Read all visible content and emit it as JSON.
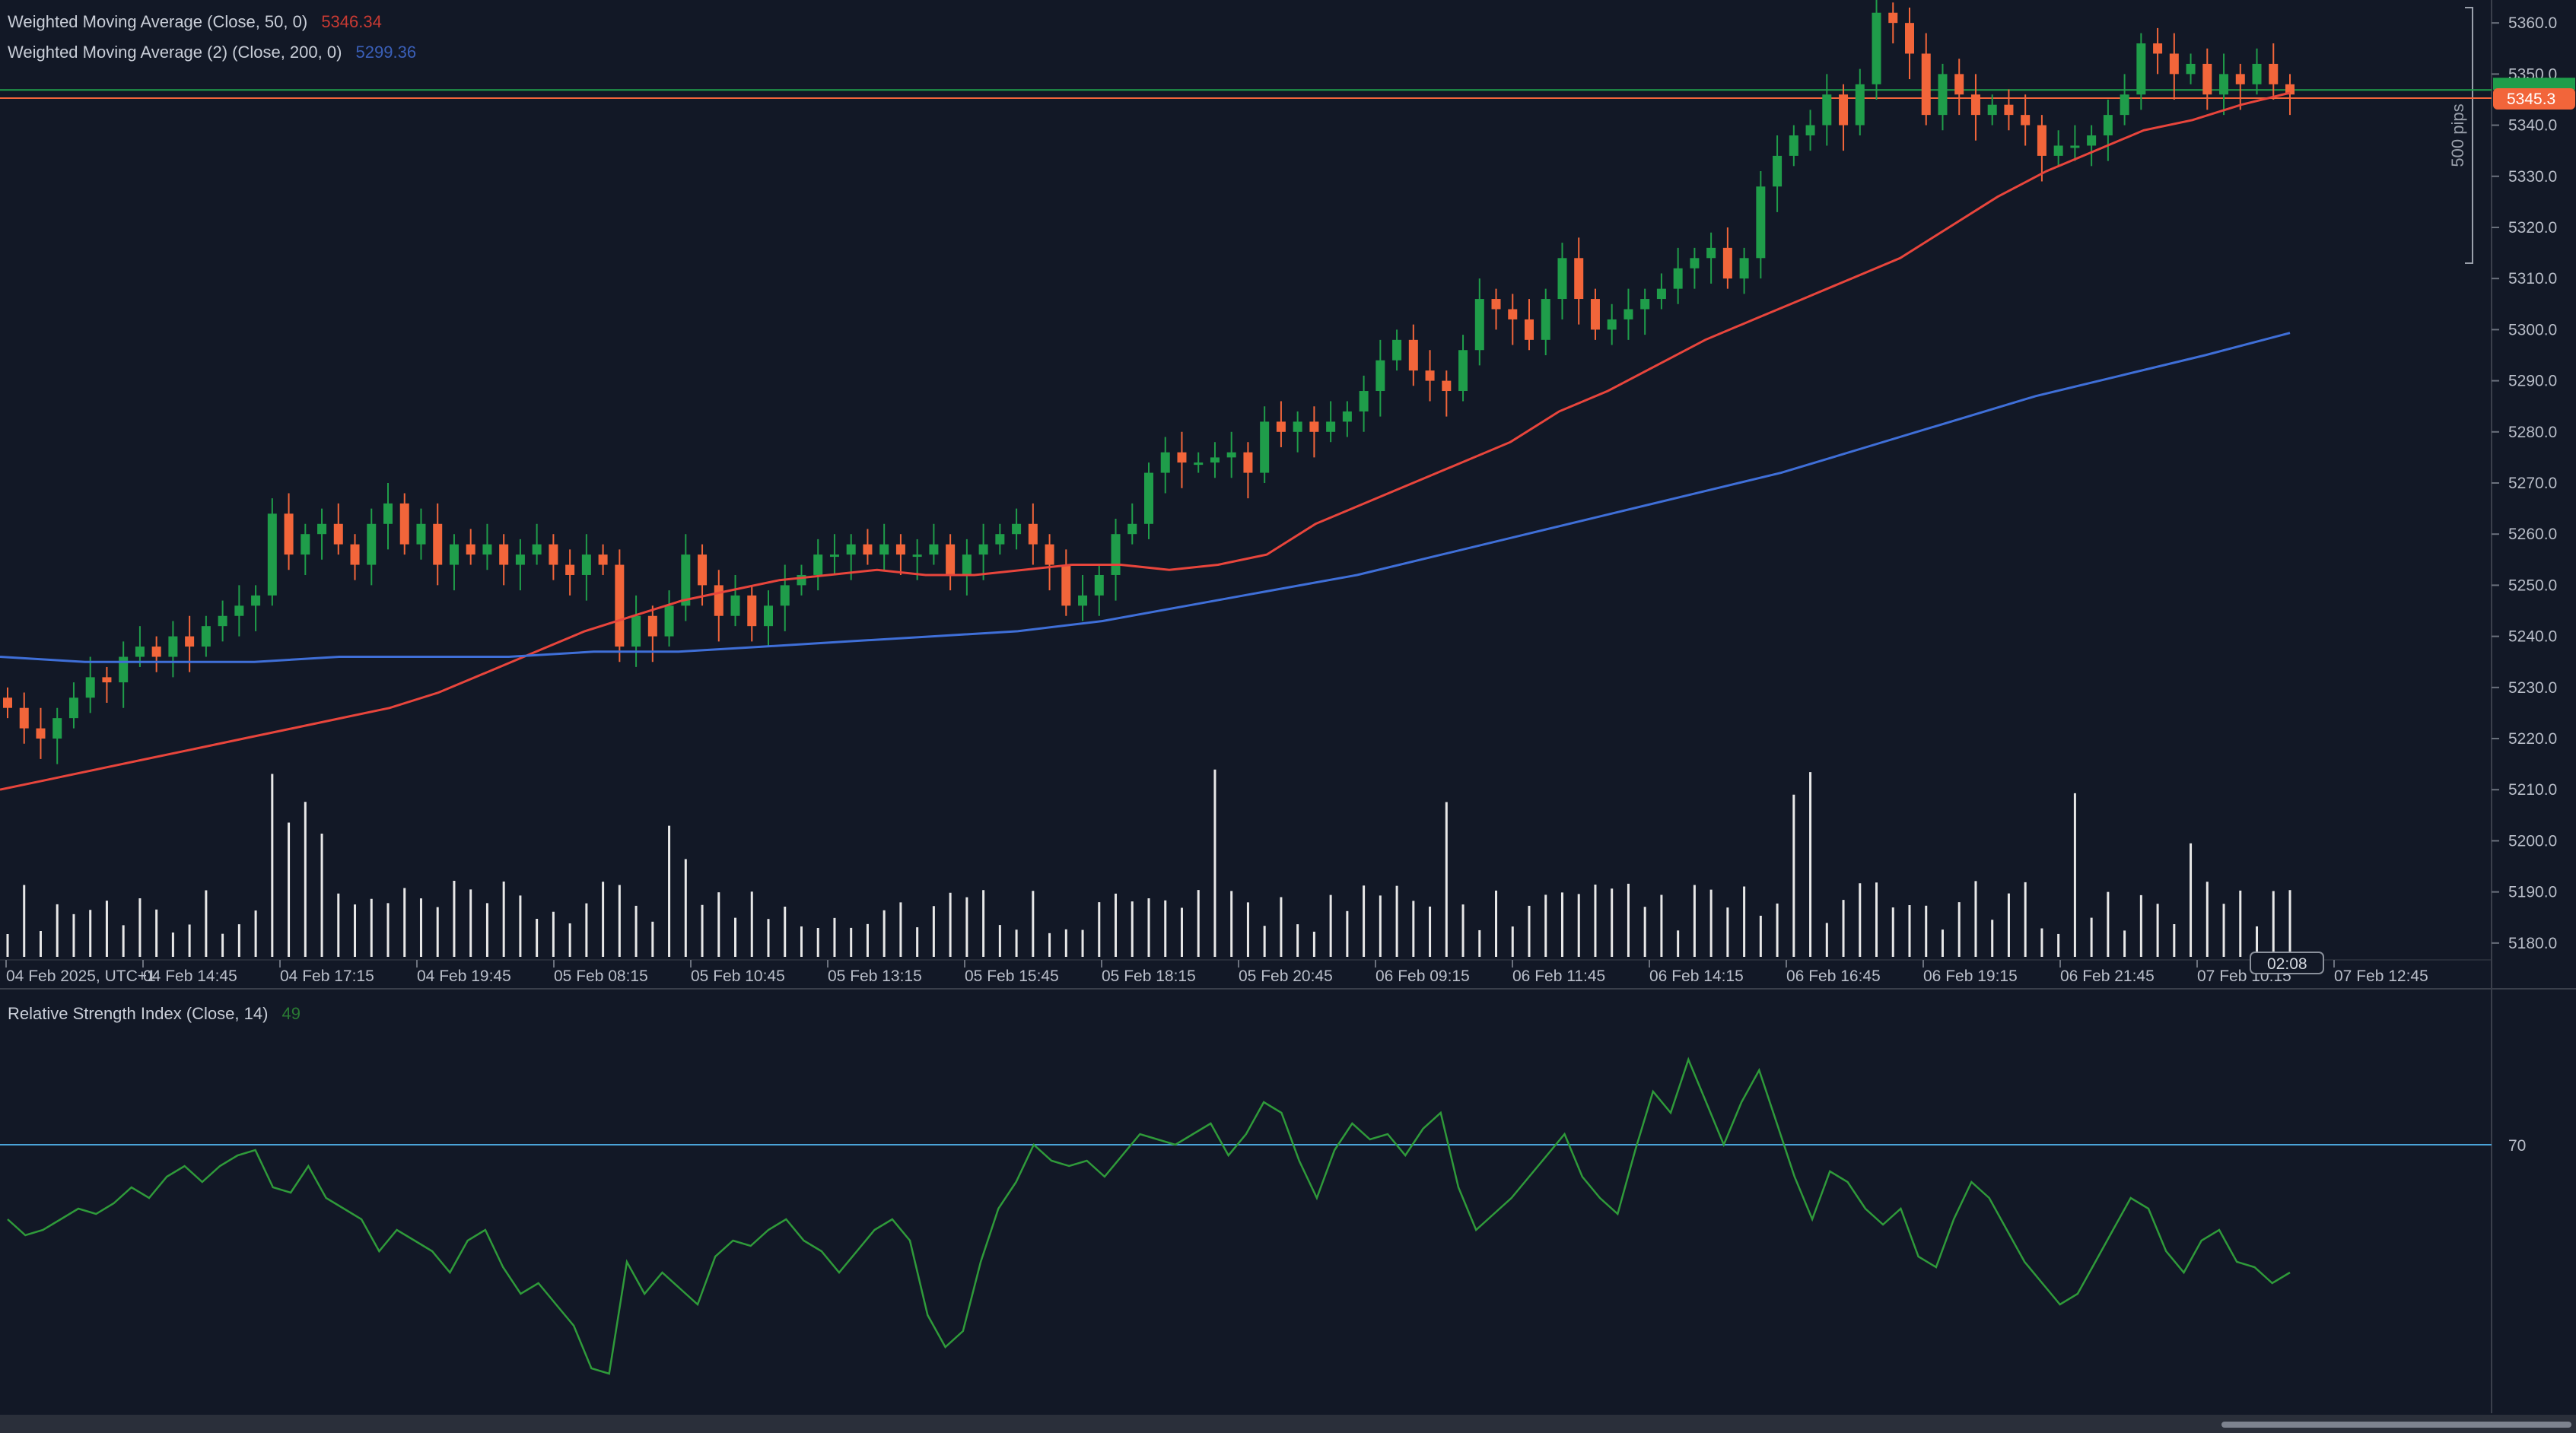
{
  "legends": {
    "wma50": {
      "label": "Weighted Moving Average (Close, 50, 0)",
      "value": "5346.34",
      "color": "#e8453c"
    },
    "wma200": {
      "label": "Weighted Moving Average (2) (Close, 200, 0)",
      "value": "5299.36",
      "color": "#3f6fd8"
    },
    "rsi": {
      "label": "Relative Strength Index (Close, 14)",
      "value": "49",
      "color": "#2f9a3a"
    }
  },
  "price_axis": {
    "ticks": [
      "5360.0",
      "5350.0",
      "5340.0",
      "5330.0",
      "5320.0",
      "5310.0",
      "5300.0",
      "5290.0",
      "5280.0",
      "5270.0",
      "5260.0",
      "5250.0",
      "5240.0",
      "5230.0",
      "5220.0",
      "5210.0",
      "5200.0",
      "5190.0",
      "5180.0"
    ],
    "current_price_label": "5345.3",
    "range_label": "500 pips"
  },
  "rsi_axis": {
    "level_label": "70"
  },
  "time_axis": {
    "ticks": [
      "04 Feb 2025, UTC+1",
      "04 Feb 14:45",
      "04 Feb 17:15",
      "04 Feb 19:45",
      "05 Feb 08:15",
      "05 Feb 10:45",
      "05 Feb 13:15",
      "05 Feb 15:45",
      "05 Feb 18:15",
      "05 Feb 20:45",
      "06 Feb 09:15",
      "06 Feb 11:45",
      "06 Feb 14:15",
      "06 Feb 16:45",
      "06 Feb 19:15",
      "06 Feb 21:45",
      "07 Feb 10:15",
      "07 Feb 12:45"
    ],
    "countdown": "02:08"
  },
  "colors": {
    "background": "#121826",
    "up": "#1f9d4a",
    "down": "#f2653a",
    "volume": "#e8e8e8",
    "grid_line": "#3a3f4b",
    "rsi_level": "#4aa3d8",
    "price_line_green": "#1f9d4a",
    "price_line_orange": "#f2653a"
  },
  "chart_data": {
    "type": "candlestick",
    "symbol_legends": [
      "Weighted Moving Average (Close, 50, 0)",
      "Weighted Moving Average (2) (Close, 200, 0)",
      "Relative Strength Index (Close, 14)"
    ],
    "ylim": [
      5177,
      5363
    ],
    "closes": [
      5226,
      5222,
      5220,
      5224,
      5228,
      5232,
      5231,
      5236,
      5238,
      5236,
      5240,
      5238,
      5242,
      5244,
      5246,
      5248,
      5264,
      5256,
      5260,
      5262,
      5258,
      5254,
      5262,
      5266,
      5258,
      5262,
      5254,
      5258,
      5256,
      5258,
      5254,
      5256,
      5258,
      5254,
      5252,
      5256,
      5254,
      5238,
      5244,
      5240,
      5246,
      5256,
      5250,
      5244,
      5248,
      5242,
      5246,
      5250,
      5252,
      5256,
      5256,
      5258,
      5256,
      5258,
      5256,
      5256,
      5258,
      5252,
      5256,
      5258,
      5260,
      5262,
      5258,
      5254,
      5246,
      5248,
      5252,
      5260,
      5262,
      5272,
      5276,
      5274,
      5274,
      5275,
      5276,
      5272,
      5282,
      5280,
      5282,
      5280,
      5282,
      5284,
      5288,
      5294,
      5298,
      5292,
      5290,
      5288,
      5296,
      5306,
      5304,
      5302,
      5298,
      5306,
      5314,
      5306,
      5300,
      5302,
      5304,
      5306,
      5308,
      5312,
      5314,
      5316,
      5310,
      5314,
      5328,
      5334,
      5338,
      5340,
      5346,
      5340,
      5348,
      5362,
      5360,
      5354,
      5342,
      5350,
      5346,
      5342,
      5344,
      5342,
      5340,
      5334,
      5336,
      5336,
      5338,
      5342,
      5346,
      5356,
      5354,
      5350,
      5352,
      5346,
      5350,
      5348,
      5352,
      5348,
      5346
    ],
    "wma50": [
      5210,
      5212,
      5214,
      5216,
      5218,
      5220,
      5222,
      5224,
      5226,
      5229,
      5233,
      5237,
      5241,
      5244,
      5247,
      5249,
      5251,
      5252,
      5253,
      5252,
      5252,
      5253,
      5254,
      5254,
      5253,
      5254,
      5256,
      5262,
      5266,
      5270,
      5274,
      5278,
      5284,
      5288,
      5293,
      5298,
      5302,
      5306,
      5310,
      5314,
      5320,
      5326,
      5331,
      5335,
      5339,
      5341,
      5344,
      5346.34
    ],
    "wma200": [
      5236,
      5235,
      5235,
      5235,
      5236,
      5236,
      5236,
      5237,
      5237,
      5238,
      5239,
      5240,
      5241,
      5243,
      5246,
      5249,
      5252,
      5256,
      5260,
      5264,
      5268,
      5272,
      5277,
      5282,
      5287,
      5291,
      5295,
      5299.36
    ],
    "volume_relative": "bars below price panel",
    "rsi": [
      56,
      53,
      54,
      56,
      58,
      57,
      59,
      62,
      60,
      64,
      66,
      63,
      66,
      68,
      69,
      62,
      61,
      66,
      60,
      58,
      56,
      50,
      54,
      52,
      50,
      46,
      52,
      54,
      47,
      42,
      44,
      40,
      36,
      28,
      27,
      48,
      42,
      46,
      43,
      40,
      49,
      52,
      51,
      54,
      56,
      52,
      50,
      46,
      50,
      54,
      56,
      52,
      38,
      32,
      35,
      48,
      58,
      63,
      70,
      67,
      66,
      67,
      64,
      68,
      72,
      71,
      70,
      72,
      74,
      68,
      72,
      78,
      76,
      67,
      60,
      69,
      74,
      71,
      72,
      68,
      73,
      76,
      62,
      54,
      57,
      60,
      64,
      68,
      72,
      64,
      60,
      57,
      69,
      80,
      76,
      86,
      78,
      70,
      78,
      84,
      74,
      64,
      56,
      65,
      63,
      58,
      55,
      58,
      49,
      47,
      56,
      63,
      60,
      54,
      48,
      44,
      40,
      42,
      48,
      54,
      60,
      58,
      50,
      46,
      52,
      54,
      48,
      47,
      44,
      46
    ],
    "rsi_level": 70
  }
}
